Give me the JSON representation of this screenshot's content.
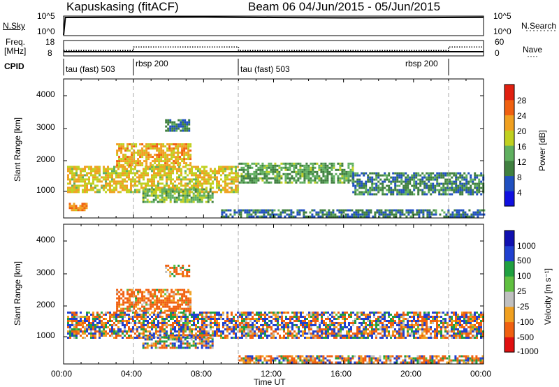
{
  "header": {
    "station": "Kapuskasing (fitACF)",
    "beam_range": "Beam 06  04/Jun/2015 - 05/Jun/2015"
  },
  "nsky_panel": {
    "left_label": "N.Sky",
    "left_ticks": [
      "10^5",
      "10^0"
    ],
    "right_ticks": [
      "10^5",
      "10^0"
    ],
    "right_label": "N.Search"
  },
  "freq_panel": {
    "left_label_1": "Freq.",
    "left_label_2": "[MHz]",
    "left_ticks": [
      "18",
      "8"
    ],
    "right_ticks": [
      "60",
      "0"
    ],
    "right_label": "Nave"
  },
  "cpid": {
    "label": "CPID",
    "segments": [
      "tau (fast) 503",
      "rbsp 200",
      "tau (fast) 503",
      "rbsp 200"
    ]
  },
  "power_panel": {
    "ylabel": "Slant Range [km]",
    "yticks": [
      "4000",
      "3000",
      "2000",
      "1000"
    ],
    "colorbar_label": "Power [dB]",
    "colorbar_ticks": [
      "28",
      "24",
      "20",
      "16",
      "12",
      "8",
      "4"
    ]
  },
  "velocity_panel": {
    "ylabel": "Slant Range [km]",
    "yticks": [
      "4000",
      "3000",
      "2000",
      "1000"
    ],
    "colorbar_label": "Velocity [m s⁻¹]",
    "colorbar_ticks": [
      "1000",
      "500",
      "100",
      "25",
      "-25",
      "-100",
      "-500",
      "-1000"
    ]
  },
  "xaxis": {
    "ticks": [
      "00:00",
      "04:00",
      "08:00",
      "12:00",
      "16:00",
      "20:00",
      "00:00"
    ],
    "label": "Time UT"
  },
  "colors": {
    "power_scale": [
      "#1010e0",
      "#2050c0",
      "#408040",
      "#60b060",
      "#c0d020",
      "#f0a020",
      "#f06010",
      "#e02010"
    ],
    "velocity_scale": [
      "#1010b0",
      "#2040d0",
      "#20a040",
      "#60c040",
      "#c0c0c0",
      "#f0a020",
      "#f06010",
      "#e01010"
    ]
  },
  "chart_data": [
    {
      "type": "line",
      "title": "",
      "ylabel": "N.Sky",
      "x_unit": "hours UT",
      "xlim": [
        0,
        24
      ],
      "note_log_scale": true,
      "series": [
        {
          "name": "N.Sky",
          "x": [
            0,
            0.1,
            4,
            8,
            12,
            16,
            20,
            24
          ],
          "values": [
            1,
            100000,
            120000,
            130000,
            100000,
            80000,
            90000,
            110000
          ]
        }
      ]
    },
    {
      "type": "line",
      "ylabel": "Freq. [MHz]",
      "xlim": [
        0,
        24
      ],
      "ylim": [
        8,
        18
      ],
      "series": [
        {
          "name": "Freq.",
          "x": [
            0,
            24
          ],
          "values": [
            11,
            11
          ]
        },
        {
          "name": "Nave",
          "x": [
            0,
            4,
            4,
            10,
            10,
            22,
            22,
            24
          ],
          "values": [
            20,
            20,
            35,
            35,
            20,
            20,
            35,
            35
          ]
        }
      ]
    },
    {
      "type": "heatmap",
      "title": "Power",
      "ylabel": "Slant Range [km]",
      "xlim": [
        0,
        24
      ],
      "ylim": [
        180,
        4500
      ],
      "zlim": [
        0,
        30
      ],
      "regions": [
        {
          "t0": 0.2,
          "t1": 10.0,
          "r0": 1000,
          "r1": 1800,
          "z": 18
        },
        {
          "t0": 3.0,
          "t1": 7.2,
          "r0": 1800,
          "r1": 2500,
          "z": 20
        },
        {
          "t0": 5.8,
          "t1": 7.2,
          "r0": 2900,
          "r1": 3250,
          "z": 8
        },
        {
          "t0": 4.5,
          "t1": 8.5,
          "r0": 700,
          "r1": 1100,
          "z": 14
        },
        {
          "t0": 10.0,
          "t1": 16.5,
          "r0": 1300,
          "r1": 1900,
          "z": 12
        },
        {
          "t0": 16.5,
          "t1": 24.0,
          "r0": 900,
          "r1": 1600,
          "z": 9
        },
        {
          "t0": 0.3,
          "t1": 1.3,
          "r0": 450,
          "r1": 650,
          "z": 22
        },
        {
          "t0": 9.0,
          "t1": 24.0,
          "r0": 250,
          "r1": 450,
          "z": 8
        }
      ]
    },
    {
      "type": "heatmap",
      "title": "Velocity",
      "ylabel": "Slant Range [km]",
      "xlim": [
        0,
        24
      ],
      "ylim": [
        180,
        4500
      ],
      "zlim": [
        -1000,
        1000
      ],
      "regions": [
        {
          "t0": 0.2,
          "t1": 24.0,
          "r0": 1000,
          "r1": 1800,
          "z": 0
        },
        {
          "t0": 3.0,
          "t1": 7.2,
          "r0": 1800,
          "r1": 2500,
          "z": -200
        },
        {
          "t0": 5.8,
          "t1": 7.2,
          "r0": 2900,
          "r1": 3250,
          "z": -150
        },
        {
          "t0": 4.5,
          "t1": 8.5,
          "r0": 700,
          "r1": 1100,
          "z": 0
        },
        {
          "t0": 10.0,
          "t1": 24.0,
          "r0": 250,
          "r1": 450,
          "z": -60
        }
      ]
    }
  ]
}
